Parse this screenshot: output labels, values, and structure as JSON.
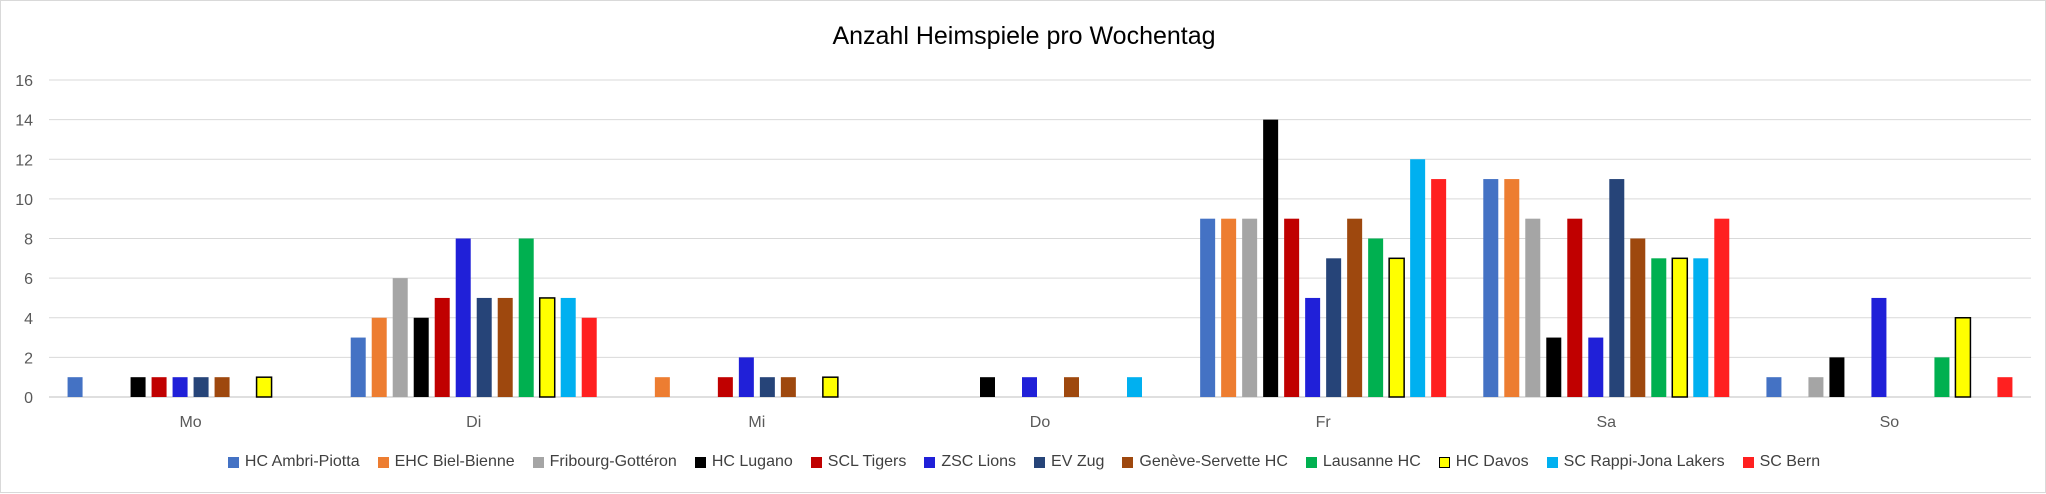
{
  "chart_data": {
    "type": "bar",
    "title": "Anzahl Heimspiele pro Wochentag",
    "xlabel": "",
    "ylabel": "",
    "ylim": [
      0,
      16
    ],
    "yticks": [
      0,
      2,
      4,
      6,
      8,
      10,
      12,
      14,
      16
    ],
    "grid": true,
    "legend_position": "bottom",
    "categories": [
      "Mo",
      "Di",
      "Mi",
      "Do",
      "Fr",
      "Sa",
      "So"
    ],
    "series": [
      {
        "name": "HC Ambri-Piotta",
        "color": "#4472C4",
        "values": [
          1,
          3,
          0,
          0,
          9,
          11,
          1
        ]
      },
      {
        "name": "EHC Biel-Bienne",
        "color": "#ED7D31",
        "values": [
          0,
          4,
          1,
          0,
          9,
          11,
          0
        ]
      },
      {
        "name": "Fribourg-Gottéron",
        "color": "#A5A5A5",
        "values": [
          0,
          6,
          0,
          0,
          9,
          9,
          1
        ]
      },
      {
        "name": "HC Lugano",
        "color": "#000000",
        "values": [
          1,
          4,
          0,
          1,
          14,
          3,
          2
        ]
      },
      {
        "name": "SCL Tigers",
        "color": "#C00000",
        "values": [
          1,
          5,
          1,
          0,
          9,
          9,
          0
        ]
      },
      {
        "name": "ZSC Lions",
        "color": "#2020D8",
        "values": [
          1,
          8,
          2,
          1,
          5,
          3,
          5
        ]
      },
      {
        "name": "EV Zug",
        "color": "#264478",
        "values": [
          1,
          5,
          1,
          0,
          7,
          11,
          0
        ]
      },
      {
        "name": "Genève-Servette HC",
        "color": "#9E480E",
        "values": [
          1,
          5,
          1,
          1,
          9,
          8,
          0
        ]
      },
      {
        "name": "Lausanne HC",
        "color": "#00B050",
        "values": [
          0,
          8,
          0,
          0,
          8,
          7,
          2
        ]
      },
      {
        "name": "HC Davos",
        "color": "#FFFF00",
        "outline": "#000000",
        "values": [
          1,
          5,
          1,
          0,
          7,
          7,
          4
        ]
      },
      {
        "name": "SC Rappi-Jona Lakers",
        "color": "#00B0F0",
        "values": [
          0,
          5,
          0,
          1,
          12,
          7,
          0
        ]
      },
      {
        "name": "SC Bern",
        "color": "#FF2020",
        "values": [
          0,
          4,
          0,
          0,
          11,
          9,
          1
        ]
      }
    ]
  }
}
